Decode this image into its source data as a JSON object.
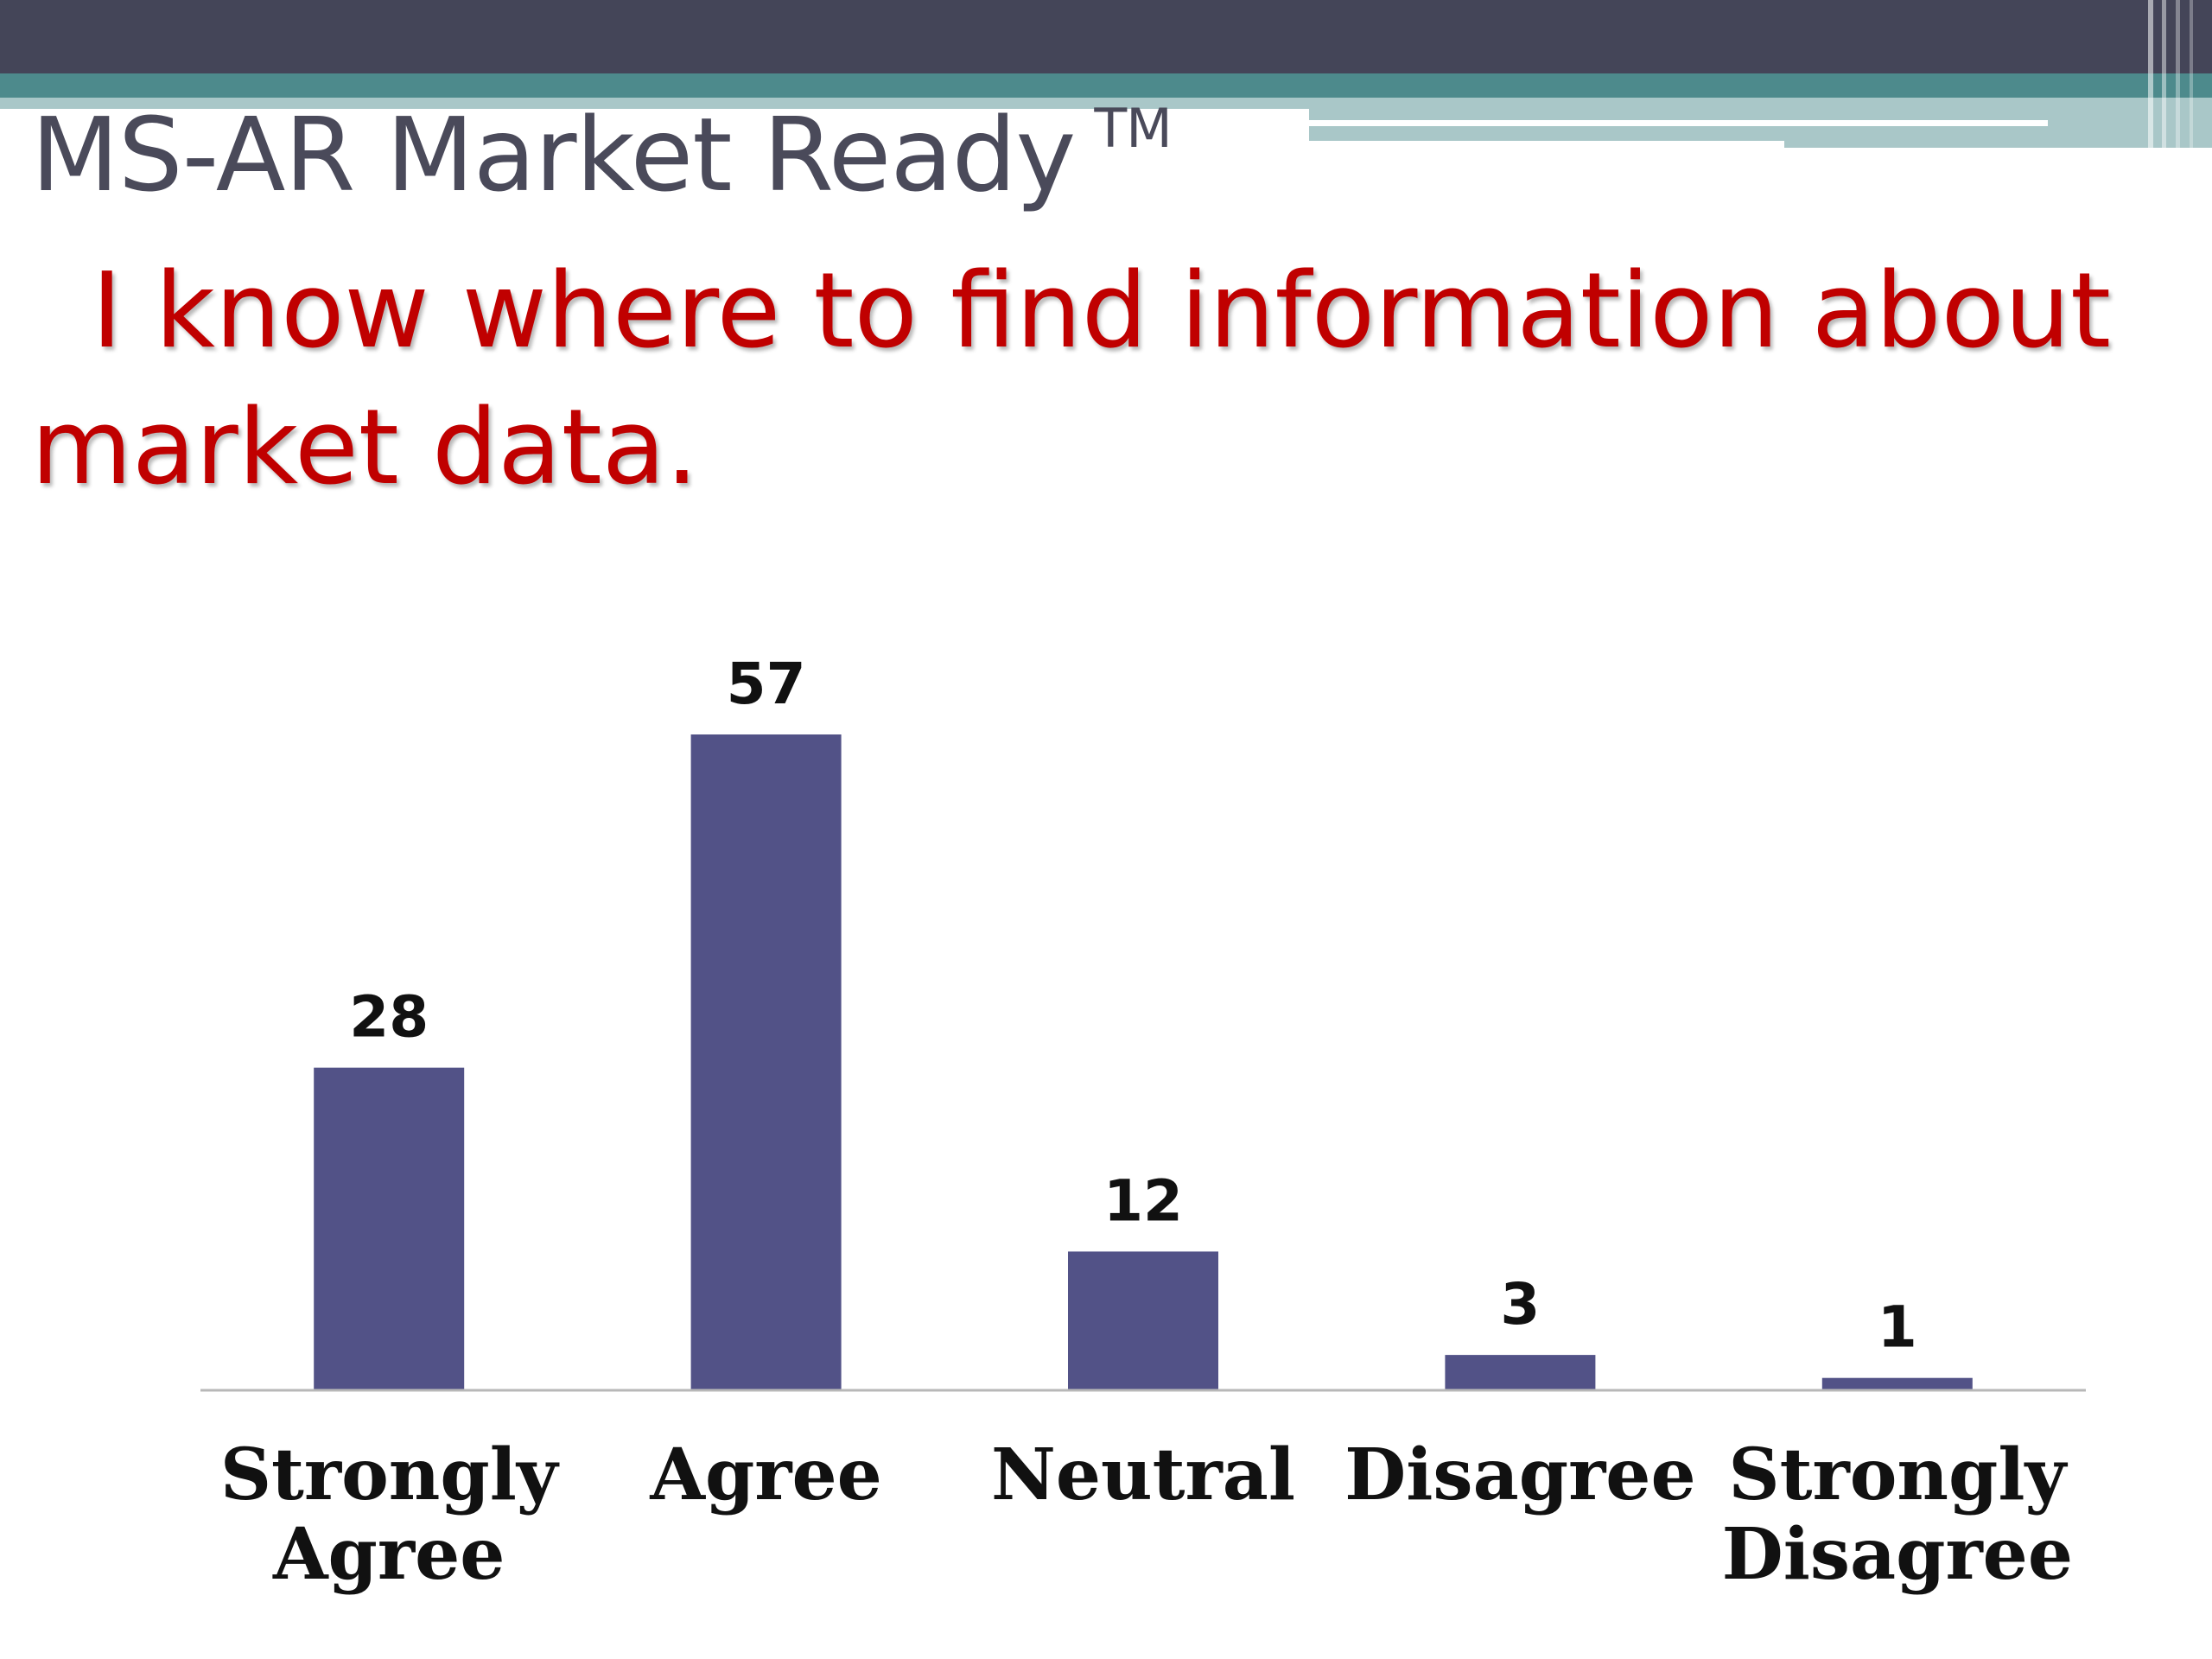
{
  "slide": {
    "heading": "MS-AR Market Ready",
    "trademark": "TM",
    "question": "I know where to find information about market data."
  },
  "colors": {
    "top_bar": "#444558",
    "teal": "#4d8a8c",
    "light_teal": "#a9c7c8",
    "heading": "#4a4a5a",
    "question": "#c00000",
    "bar": "#525287",
    "axis": "#b8b8b8"
  },
  "chart_data": {
    "type": "bar",
    "categories": [
      "Strongly Agree",
      "Agree",
      "Neutral",
      "Disagree",
      "Strongly Disagree"
    ],
    "category_lines": [
      [
        "Strongly",
        "Agree"
      ],
      [
        "Agree"
      ],
      [
        "Neutral"
      ],
      [
        "Disagree"
      ],
      [
        "Strongly",
        "Disagree"
      ]
    ],
    "values": [
      28,
      57,
      12,
      3,
      1
    ],
    "data_labels": [
      "28",
      "57",
      "12",
      "3",
      "1"
    ],
    "ylim": [
      0,
      57
    ],
    "grid": false,
    "legend": "none"
  }
}
